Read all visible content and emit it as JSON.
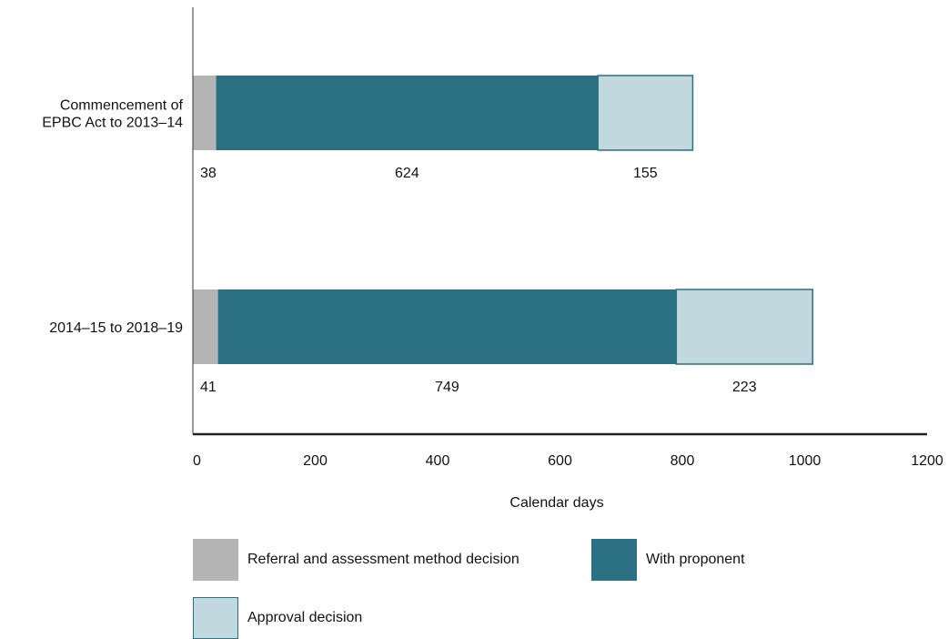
{
  "chart_data": {
    "type": "bar",
    "orientation": "horizontal",
    "stacked": true,
    "categories": [
      "Commencement of EPBC Act to 2013–14",
      "2014–15 to 2018–19"
    ],
    "category_lines": [
      [
        "Commencement of",
        "EPBC Act to 2013–14"
      ],
      [
        "2014–15 to 2018–19"
      ]
    ],
    "series": [
      {
        "name": "Referral and assessment method decision",
        "values": [
          38,
          41
        ],
        "color": "#b4b4b4"
      },
      {
        "name": "With proponent",
        "values": [
          624,
          749
        ],
        "color": "#2b7083"
      },
      {
        "name": "Approval decision",
        "values": [
          155,
          223
        ],
        "color": "#c2d8df"
      }
    ],
    "data_labels": [
      [
        "38",
        "624",
        "155"
      ],
      [
        "41",
        "749",
        "223"
      ]
    ],
    "xlabel": "Calendar days",
    "ylabel": "",
    "xlim": [
      0,
      1200
    ],
    "xticks": [
      0,
      200,
      400,
      600,
      800,
      1000,
      1200
    ],
    "grid": false,
    "legend_position": "bottom"
  }
}
